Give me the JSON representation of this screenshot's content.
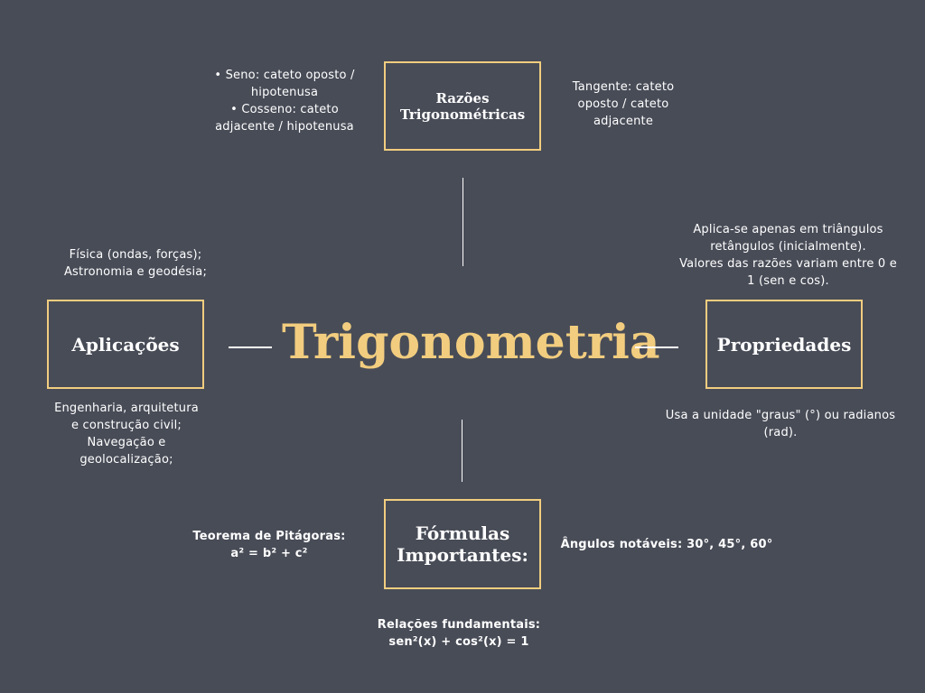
{
  "central_topic": {
    "title": "Trigonometria"
  },
  "nodes": {
    "razoes": {
      "label": "Razões\nTrigonométricas",
      "notes_left": "• Seno: cateto oposto /\nhipotenusa\n• Cosseno: cateto\nadjacente / hipotenusa",
      "notes_right": "Tangente: cateto\noposto / cateto\nadjacente"
    },
    "aplicacoes": {
      "label": "Aplicações",
      "notes_top": "Física (ondas, forças);\nAstronomia e geodésia;",
      "notes_bottom": "Engenharia, arquitetura\ne construção civil;\nNavegação e\ngeolocalização;"
    },
    "propriedades": {
      "label": "Propriedades",
      "notes_top": "Aplica-se apenas em triângulos\nretângulos (inicialmente).\nValores das razões variam entre 0 e\n1 (sen e cos).",
      "notes_bottom": "Usa a unidade \"graus\" (°) ou radianos\n(rad)."
    },
    "formulas": {
      "label": "Fórmulas\nImportantes:",
      "notes_left": "Teorema de Pitágoras:\na² = b² + c²",
      "notes_right": "Ângulos notáveis: 30°, 45°, 60°",
      "notes_bottom": "Relações fundamentais:\nsen²(x) + cos²(x) = 1"
    }
  },
  "colors": {
    "background": "#484c57",
    "accent": "#f2cd7f",
    "text": "#ffffff"
  }
}
